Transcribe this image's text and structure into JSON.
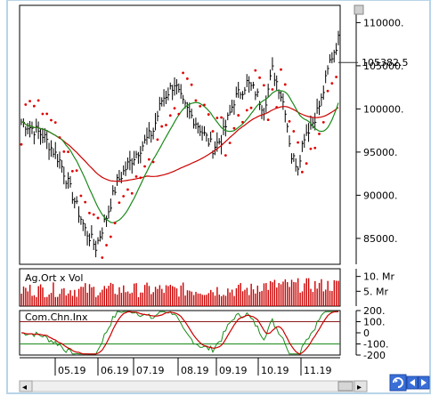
{
  "chart_data": [
    {
      "type": "line",
      "title": "",
      "ylim": [
        82000,
        112000
      ],
      "ytick_labels": [
        "110000.",
        "105000.",
        "100000.",
        "95000.",
        "90000.",
        "85000."
      ],
      "yticks": [
        110000,
        105000,
        100000,
        95000,
        90000,
        85000
      ],
      "last_price_label": "105382.5",
      "last_price": 105382.5,
      "series": [],
      "colors": {
        "price": "#000000",
        "ma_long": "#cc0000",
        "ma_short": "#1a8a1a",
        "sar": "#e00000"
      }
    },
    {
      "type": "bar",
      "title": "Ag.Ort x Vol",
      "ytick_labels": [
        "10. Mr",
        "5. Mr"
      ],
      "yticks": [
        10,
        5
      ],
      "color": "#cc0000"
    },
    {
      "type": "line",
      "title": "Com.Chn.Inx",
      "ytick_labels": [
        "200.",
        "100.",
        "0",
        "-100.",
        "-200"
      ],
      "yticks": [
        200,
        100,
        0,
        -100,
        -200
      ],
      "reference_lines": [
        100,
        -100
      ],
      "colors": {
        "cci": "#cc0000",
        "signal": "#1a8a1a"
      }
    }
  ],
  "x_axis": {
    "tick_labels": [
      "05.19",
      "06.19",
      "07.19",
      "08.19",
      "09.19",
      "10.19",
      "11.19"
    ]
  },
  "controls": {
    "scroll_left_glyph": "◂",
    "scroll_right_glyph": "▸"
  }
}
